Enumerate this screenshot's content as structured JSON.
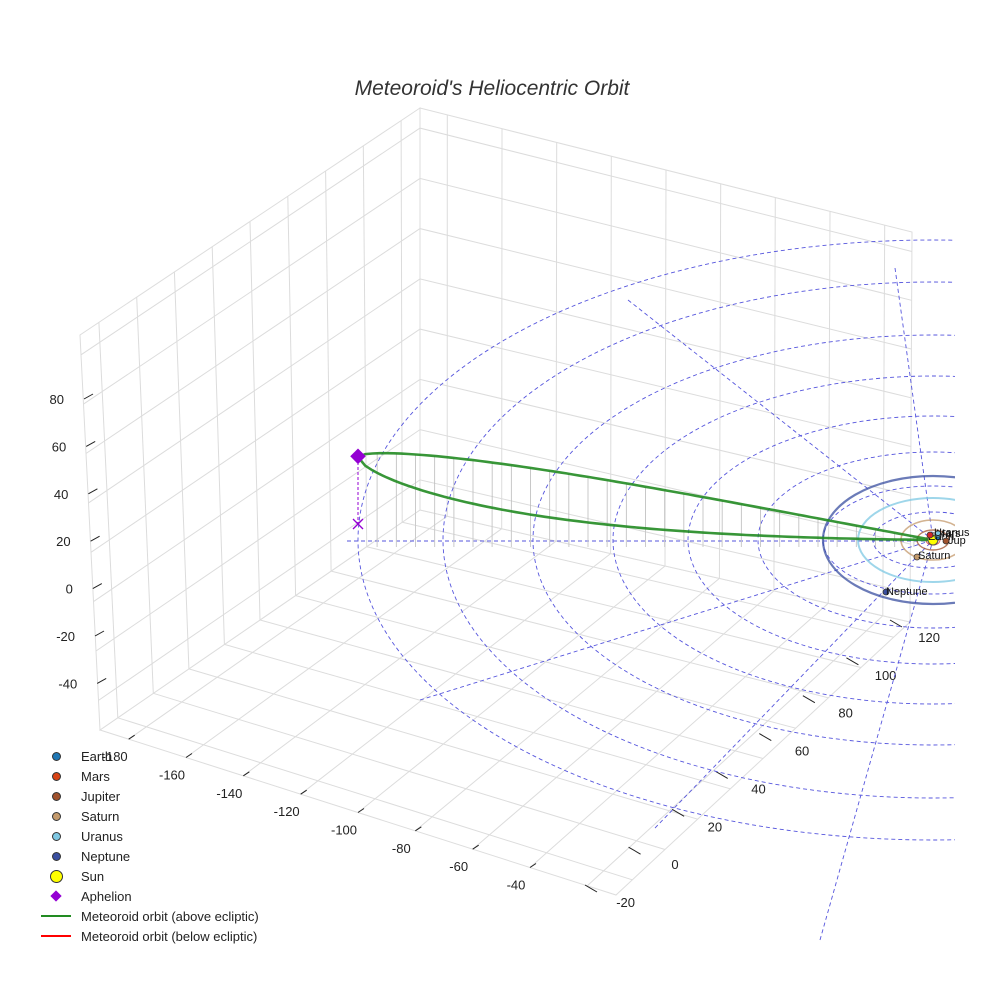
{
  "chart_data": {
    "type": "line",
    "title": "Meteoroid's Heliocentric Orbit",
    "projection": "3d",
    "axes": {
      "x": {
        "ticks": [
          -180,
          -160,
          -140,
          -120,
          -100,
          -80,
          -60,
          -40
        ],
        "range": [
          -190,
          -30
        ]
      },
      "y": {
        "ticks": [
          -20,
          0,
          20,
          40,
          60,
          80,
          100,
          120
        ],
        "range": [
          -30,
          130
        ]
      },
      "z": {
        "ticks": [
          -40,
          -20,
          0,
          20,
          40,
          60,
          80
        ],
        "range": [
          -50,
          90
        ]
      }
    },
    "planets": [
      {
        "name": "Earth",
        "label": "Earth",
        "color": "#1f77b4",
        "orbit_radius_au": 1
      },
      {
        "name": "Mars",
        "label": "Mars",
        "color": "#d62728",
        "orbit_radius_au": 1.52
      },
      {
        "name": "Jupiter",
        "label": "Jup",
        "color": "#a0522d",
        "orbit_radius_au": 5.2
      },
      {
        "name": "Saturn",
        "label": "Saturn",
        "color": "#c49a6c",
        "orbit_radius_au": 9.5
      },
      {
        "name": "Uranus",
        "label": "Uranus",
        "color": "#7ec8e3",
        "orbit_radius_au": 19.2
      },
      {
        "name": "Neptune",
        "label": "Neptune",
        "color": "#3a4fa0",
        "orbit_radius_au": 30.1
      }
    ],
    "sun": {
      "name": "Sun",
      "color": "#ffff00"
    },
    "aphelion": {
      "name": "Aphelion",
      "color": "#9400d3",
      "position_au": [
        -176,
        0,
        38
      ]
    },
    "orbit_series": [
      {
        "name": "Meteoroid orbit (above ecliptic)",
        "color": "#228b22"
      },
      {
        "name": "Meteoroid orbit (below ecliptic)",
        "color": "#ff0000"
      }
    ],
    "ecliptic_grid": {
      "style": "dashed",
      "color": "#5555dd"
    }
  },
  "legend": [
    {
      "label": "Earth",
      "kind": "dot",
      "color": "#1f77b4"
    },
    {
      "label": "Mars",
      "kind": "dot",
      "color": "#d84315"
    },
    {
      "label": "Jupiter",
      "kind": "dot",
      "color": "#a0522d"
    },
    {
      "label": "Saturn",
      "kind": "dot",
      "color": "#c49a6c"
    },
    {
      "label": "Uranus",
      "kind": "dot",
      "color": "#7ec8e3"
    },
    {
      "label": "Neptune",
      "kind": "dot",
      "color": "#3a4fa0"
    },
    {
      "label": "Sun",
      "kind": "sun",
      "color": "#ffff00"
    },
    {
      "label": "Aphelion",
      "kind": "diamond",
      "color": "#9400d3"
    },
    {
      "label": "Meteoroid orbit (above ecliptic)",
      "kind": "line",
      "color": "#228b22"
    },
    {
      "label": "Meteoroid orbit (below ecliptic)",
      "kind": "line",
      "color": "#ff0000"
    }
  ]
}
